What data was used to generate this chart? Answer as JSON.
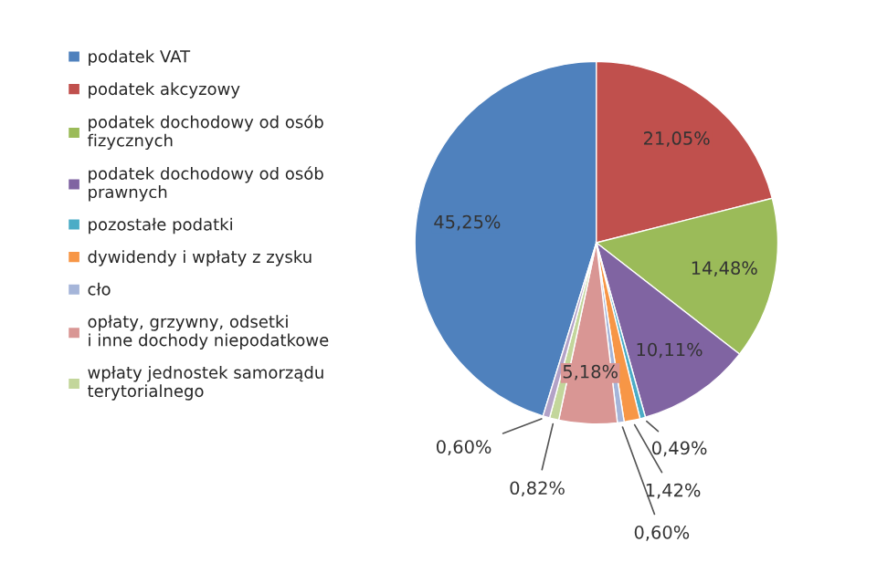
{
  "chart_data": {
    "type": "pie",
    "categories": [
      "podatek VAT",
      "podatek akcyzowy",
      "podatek dochodowy od osób\nfizycznych",
      "podatek dochodowy od osób\nprawnych",
      "pozostałe podatki",
      "dywidendy i wpłaty z zysku",
      "cło",
      "opłaty, grzywny, odsetki\ni inne dochody niepodatkowe",
      "wpłaty jednostek samorządu\nterytorialnego",
      null
    ],
    "values": [
      45.25,
      21.05,
      14.48,
      10.11,
      0.49,
      1.42,
      0.6,
      5.18,
      0.82,
      0.6
    ],
    "value_labels": [
      "45,25%",
      "21,05%",
      "14,48%",
      "10,11%",
      "0,49%",
      "1,42%",
      "0,60%",
      "5,18%",
      "0,82%",
      "0,60%"
    ],
    "colors": [
      "#4f81bd",
      "#c0504d",
      "#9bbb59",
      "#8064a2",
      "#4bacc6",
      "#f79646",
      "#a5b5d9",
      "#d99694",
      "#c3d69b",
      "#b3a2c7"
    ],
    "legend": "left"
  }
}
